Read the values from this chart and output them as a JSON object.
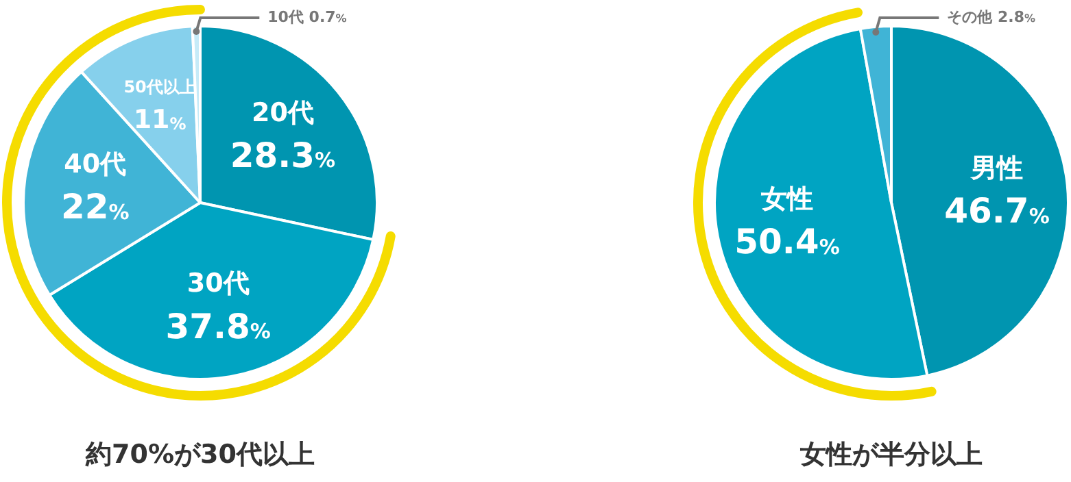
{
  "chart_data": [
    {
      "type": "pie",
      "title": "約70%が30代以上",
      "categories": [
        "20代",
        "30代",
        "40代",
        "50代以上",
        "10代"
      ],
      "values": [
        28.3,
        37.8,
        22,
        11,
        0.7
      ],
      "colors": [
        "#0095b0",
        "#00a4c2",
        "#40b4d6",
        "#86d0ec",
        "#c6ebf8"
      ],
      "value_labels": [
        "28.3%",
        "37.8%",
        "22%",
        "11%",
        "0.7%"
      ]
    },
    {
      "type": "pie",
      "title": "女性が半分以上",
      "categories": [
        "男性",
        "女性",
        "その他"
      ],
      "values": [
        46.7,
        50.4,
        2.8
      ],
      "colors": [
        "#0095b0",
        "#00a4c2",
        "#40b4d6"
      ],
      "value_labels": [
        "46.7%",
        "50.4%",
        "2.8%"
      ]
    }
  ]
}
